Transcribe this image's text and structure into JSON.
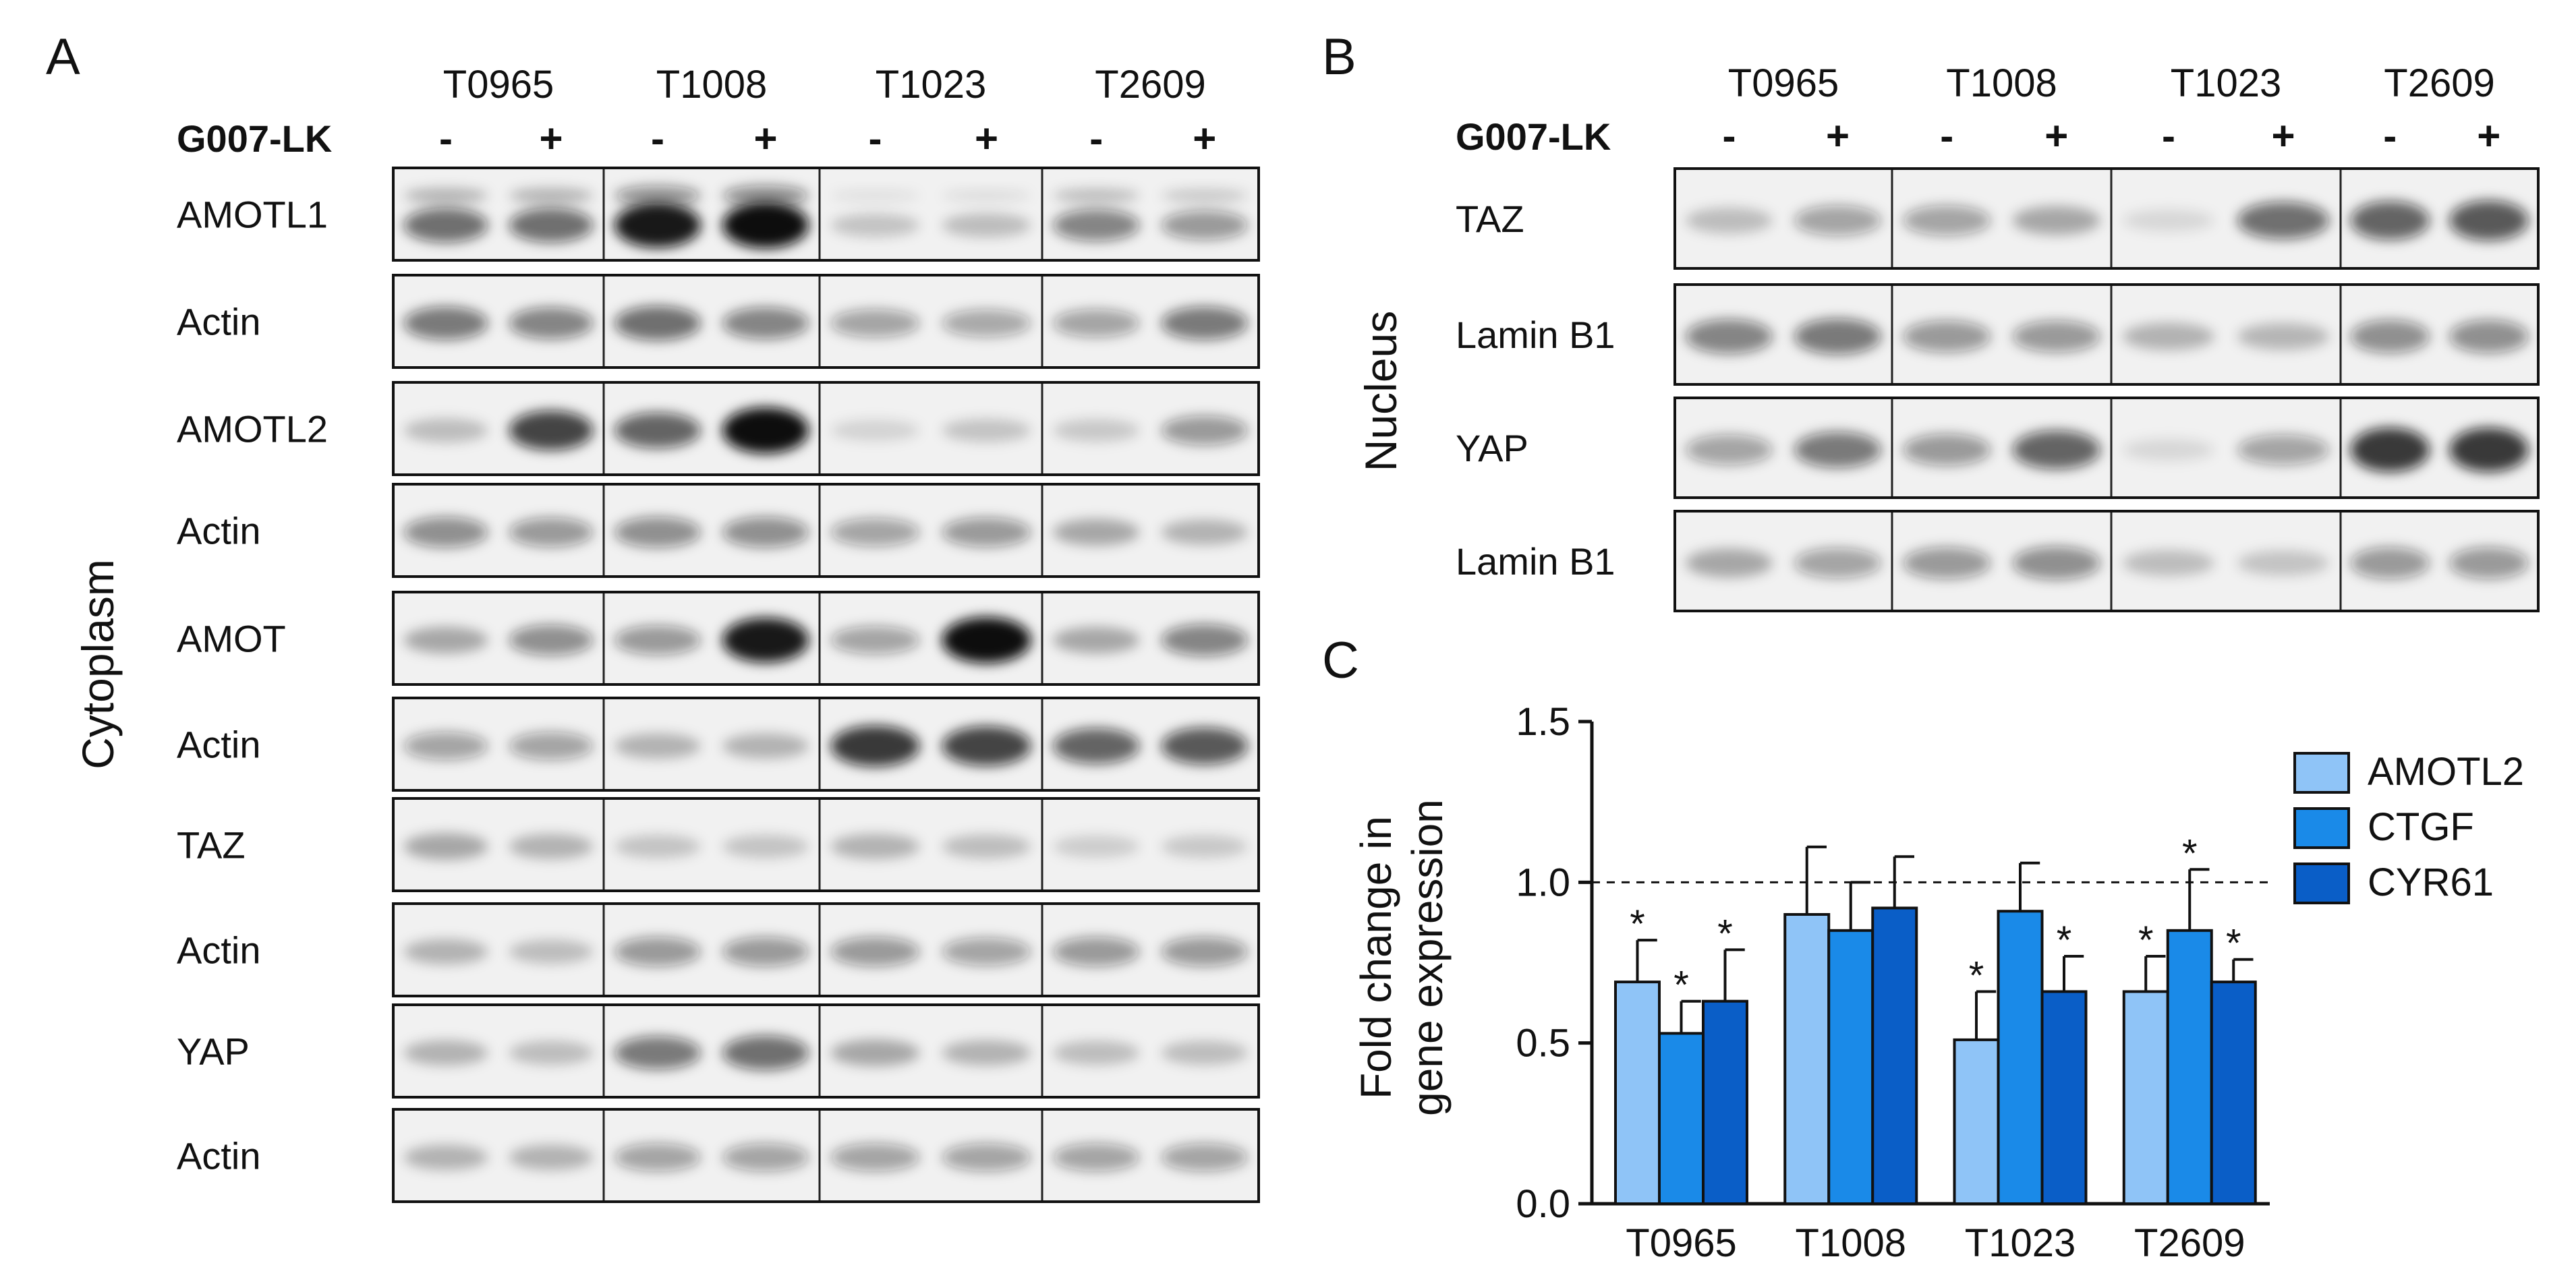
{
  "panelA": {
    "letter": "A",
    "side_label": "Cytoplasm",
    "treatment_label": "G007-LK",
    "samples": [
      "T0965",
      "T1008",
      "T1023",
      "T2609"
    ],
    "lanes": [
      "-",
      "+",
      "-",
      "+",
      "-",
      "+",
      "-",
      "+"
    ],
    "blots": [
      {
        "label": "AMOTL1",
        "bands": [
          0.55,
          0.55,
          0.95,
          1.0,
          0.12,
          0.15,
          0.45,
          0.35
        ],
        "double": true
      },
      {
        "label": "Actin",
        "bands": [
          0.5,
          0.45,
          0.55,
          0.45,
          0.3,
          0.28,
          0.3,
          0.5
        ]
      },
      {
        "label": "AMOTL2",
        "bands": [
          0.15,
          0.75,
          0.6,
          1.0,
          0.05,
          0.12,
          0.1,
          0.35
        ]
      },
      {
        "label": "Actin",
        "bands": [
          0.4,
          0.35,
          0.4,
          0.4,
          0.3,
          0.35,
          0.25,
          0.2
        ]
      },
      {
        "label": "AMOT",
        "bands": [
          0.25,
          0.4,
          0.35,
          0.95,
          0.3,
          1.0,
          0.25,
          0.45
        ]
      },
      {
        "label": "Actin",
        "bands": [
          0.3,
          0.3,
          0.2,
          0.2,
          0.8,
          0.75,
          0.6,
          0.65
        ]
      },
      {
        "label": "TAZ",
        "bands": [
          0.25,
          0.2,
          0.12,
          0.12,
          0.2,
          0.15,
          0.08,
          0.1
        ]
      },
      {
        "label": "Actin",
        "bands": [
          0.2,
          0.15,
          0.35,
          0.35,
          0.35,
          0.3,
          0.35,
          0.35
        ]
      },
      {
        "label": "YAP",
        "bands": [
          0.2,
          0.15,
          0.5,
          0.55,
          0.25,
          0.2,
          0.15,
          0.15
        ]
      },
      {
        "label": "Actin",
        "bands": [
          0.2,
          0.2,
          0.3,
          0.3,
          0.3,
          0.3,
          0.3,
          0.3
        ]
      }
    ]
  },
  "panelB": {
    "letter": "B",
    "side_label": "Nucleus",
    "treatment_label": "G007-LK",
    "samples": [
      "T0965",
      "T1008",
      "T1023",
      "T2609"
    ],
    "lanes": [
      "-",
      "+",
      "-",
      "+",
      "-",
      "+",
      "-",
      "+"
    ],
    "blots": [
      {
        "label": "TAZ",
        "bands": [
          0.15,
          0.3,
          0.3,
          0.25,
          0.03,
          0.55,
          0.6,
          0.65
        ]
      },
      {
        "label": "Lamin B1",
        "bands": [
          0.45,
          0.5,
          0.35,
          0.35,
          0.2,
          0.18,
          0.4,
          0.4
        ]
      },
      {
        "label": "YAP",
        "bands": [
          0.3,
          0.5,
          0.35,
          0.6,
          0.03,
          0.3,
          0.8,
          0.8
        ]
      },
      {
        "label": "Lamin B1",
        "bands": [
          0.25,
          0.3,
          0.35,
          0.4,
          0.15,
          0.12,
          0.35,
          0.35
        ]
      }
    ]
  },
  "panelC": {
    "letter": "C",
    "chart_data": {
      "type": "bar",
      "title": "",
      "xlabel": "",
      "ylabel_lines": [
        "Fold change in",
        "gene expression"
      ],
      "categories": [
        "T0965",
        "T1008",
        "T1023",
        "T2609"
      ],
      "ylim": [
        0,
        1.5
      ],
      "yticks": [
        "0.0",
        "0.5",
        "1.0",
        "1.5"
      ],
      "reference_line": 1.0,
      "series": [
        {
          "name": "AMOTL2",
          "color": "#8fc4f7",
          "values": [
            0.69,
            0.9,
            0.51,
            0.66
          ],
          "errors": [
            0.13,
            0.21,
            0.15,
            0.11
          ],
          "significant": [
            true,
            false,
            true,
            true
          ]
        },
        {
          "name": "CTGF",
          "color": "#1a8ae8",
          "values": [
            0.53,
            0.85,
            0.91,
            0.85
          ],
          "errors": [
            0.1,
            0.15,
            0.15,
            0.19
          ],
          "significant": [
            true,
            false,
            false,
            true
          ]
        },
        {
          "name": "CYR61",
          "color": "#0a5ec7",
          "values": [
            0.63,
            0.92,
            0.66,
            0.69
          ],
          "errors": [
            0.16,
            0.16,
            0.11,
            0.07
          ],
          "significant": [
            true,
            false,
            true,
            true
          ]
        }
      ],
      "significance_mark": "*",
      "legend_position": "right"
    }
  }
}
